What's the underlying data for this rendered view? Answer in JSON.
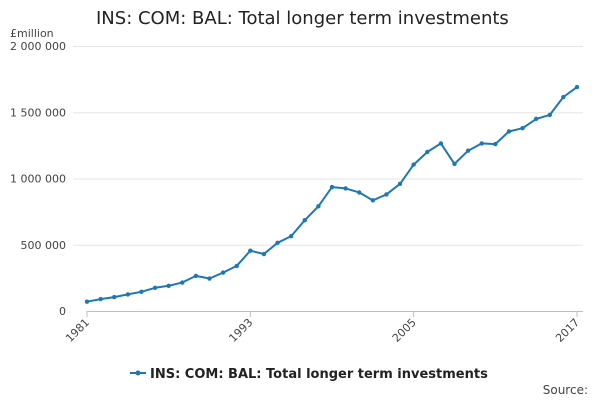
{
  "chart_data": {
    "type": "line",
    "title": "INS: COM: BAL: Total longer term investments",
    "unit_label": "£million",
    "source_label": "Source:",
    "ylim": [
      0,
      2000000
    ],
    "y_ticks": [
      {
        "value": 0,
        "label": "0"
      },
      {
        "value": 500000,
        "label": "500 000"
      },
      {
        "value": 1000000,
        "label": "1 000 000"
      },
      {
        "value": 1500000,
        "label": "1 500 000"
      },
      {
        "value": 2000000,
        "label": "2 000 000"
      }
    ],
    "x_ticks": [
      "1981",
      "1993",
      "2005",
      "2017"
    ],
    "grid": true,
    "legend_position": "bottom",
    "color": "#1f77b4",
    "series": [
      {
        "name": "INS: COM: BAL: Total longer term investments",
        "x": [
          1981,
          1982,
          1983,
          1984,
          1985,
          1986,
          1987,
          1988,
          1989,
          1990,
          1991,
          1992,
          1993,
          1994,
          1995,
          1996,
          1997,
          1998,
          1999,
          2000,
          2001,
          2002,
          2003,
          2004,
          2005,
          2006,
          2007,
          2008,
          2009,
          2010,
          2011,
          2012,
          2013,
          2014,
          2015,
          2016,
          2017
        ],
        "values": [
          70000,
          90000,
          105000,
          125000,
          145000,
          175000,
          190000,
          215000,
          265000,
          245000,
          290000,
          340000,
          455000,
          430000,
          515000,
          565000,
          685000,
          790000,
          935000,
          925000,
          895000,
          835000,
          880000,
          960000,
          1105000,
          1200000,
          1265000,
          1110000,
          1210000,
          1265000,
          1260000,
          1355000,
          1380000,
          1450000,
          1480000,
          1615000,
          1690000
        ]
      }
    ]
  }
}
